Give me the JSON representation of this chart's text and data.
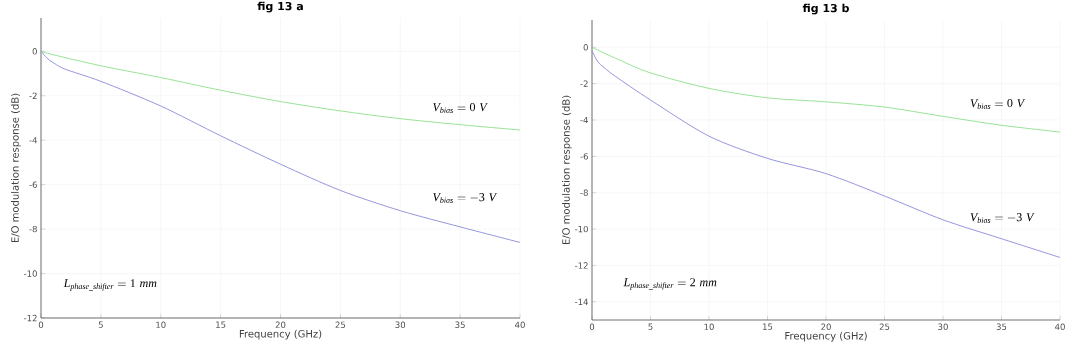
{
  "chart_data": [
    {
      "type": "line",
      "title": "fig 13 a",
      "xlabel": "Frequency (GHz)",
      "ylabel": "E/O modulation response (dB)",
      "xlim": [
        0,
        40
      ],
      "ylim": [
        -12,
        1.5
      ],
      "xticks": [
        0,
        5,
        10,
        15,
        20,
        25,
        30,
        35,
        40
      ],
      "yticks": [
        0,
        -2,
        -4,
        -6,
        -8,
        -10,
        -12
      ],
      "grid": true,
      "series": [
        {
          "color": "#7ddc7a",
          "x": [
            0,
            1,
            5,
            10,
            15,
            20,
            25,
            30,
            35,
            40
          ],
          "values": [
            0,
            -0.15,
            -0.65,
            -1.18,
            -1.75,
            -2.26,
            -2.68,
            -3.03,
            -3.3,
            -3.54
          ]
        },
        {
          "color": "#7b7bd6",
          "x": [
            0,
            0.5,
            1,
            2,
            5,
            10,
            15,
            20,
            25,
            30,
            35,
            40
          ],
          "values": [
            0,
            -0.3,
            -0.5,
            -0.8,
            -1.35,
            -2.46,
            -3.8,
            -5.08,
            -6.26,
            -7.17,
            -7.9,
            -8.6
          ]
        }
      ],
      "annotations": [
        "V_{bias} = 0\\ V",
        "V_{bias} = -3\\ V",
        "L_{phase\\_shifter} = 1\\ mm"
      ]
    },
    {
      "type": "line",
      "title": "fig 13 b",
      "xlabel": "Frequency (GHz)",
      "ylabel": "E/O modulation response (dB)",
      "xlim": [
        0,
        40
      ],
      "ylim": [
        -15,
        1.5
      ],
      "xticks": [
        0,
        5,
        10,
        15,
        20,
        25,
        30,
        35,
        40
      ],
      "yticks": [
        0,
        -2,
        -4,
        -6,
        -8,
        -10,
        -12,
        -14
      ],
      "grid": true,
      "series": [
        {
          "color": "#7ddc7a",
          "x": [
            0,
            2,
            5,
            10,
            15,
            20,
            25,
            30,
            35,
            40
          ],
          "values": [
            0,
            -0.6,
            -1.41,
            -2.26,
            -2.78,
            -3.0,
            -3.29,
            -3.8,
            -4.29,
            -4.66
          ]
        },
        {
          "color": "#7b7bd6",
          "x": [
            0,
            0.5,
            1,
            2,
            5,
            10,
            15,
            20,
            25,
            30,
            35,
            40
          ],
          "values": [
            -0.2,
            -0.8,
            -1.1,
            -1.6,
            -2.9,
            -4.89,
            -6.11,
            -6.95,
            -8.18,
            -9.49,
            -10.53,
            -11.56
          ]
        }
      ],
      "annotations": [
        "V_{bias} = 0\\ V",
        "V_{bias} = -3\\ V",
        "L_{phase\\_shifter} = 2\\ mm"
      ]
    }
  ]
}
